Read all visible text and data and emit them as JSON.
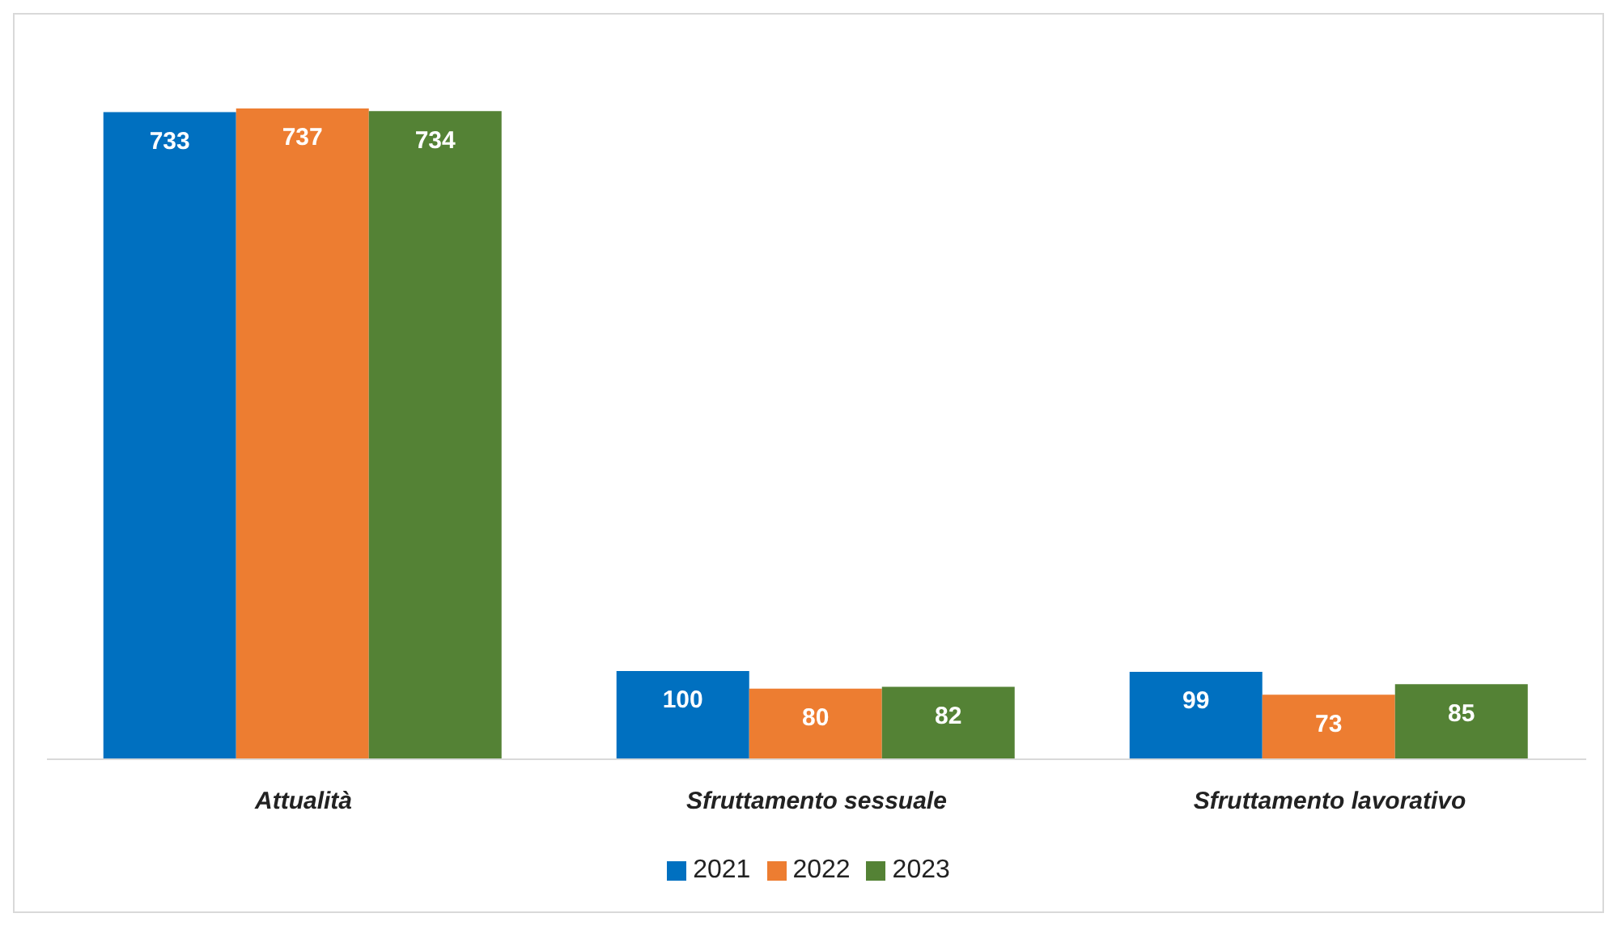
{
  "chart_data": {
    "type": "bar",
    "categories": [
      "Attualità",
      "Sfruttamento sessuale",
      "Sfruttamento lavorativo"
    ],
    "series": [
      {
        "name": "2021",
        "color": "#0070c0",
        "values": [
          733,
          100,
          99
        ]
      },
      {
        "name": "2022",
        "color": "#ed7d31",
        "values": [
          737,
          80,
          73
        ]
      },
      {
        "name": "2023",
        "color": "#548235",
        "values": [
          734,
          82,
          85
        ]
      }
    ],
    "data_labels": true,
    "legend": "bottom",
    "grid": false
  }
}
